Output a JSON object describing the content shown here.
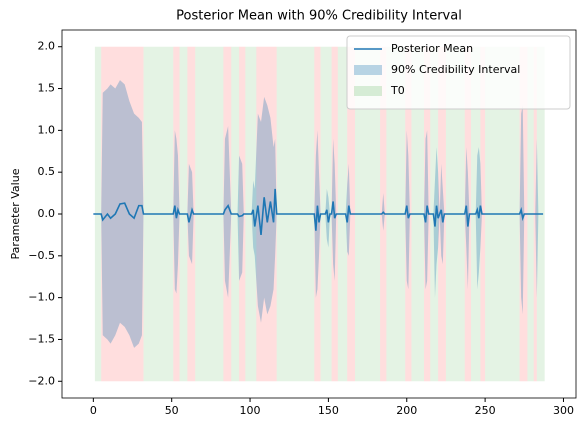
{
  "chart_data": {
    "type": "line",
    "title": "Posterior Mean with 90% Credibility Interval",
    "ylabel": "Parameter Value",
    "x": [
      0,
      5,
      6,
      9,
      11,
      14,
      17,
      20,
      23,
      26,
      29,
      31,
      32,
      51,
      52,
      53,
      54,
      55,
      60,
      61,
      63,
      64,
      83,
      84,
      86,
      88,
      92,
      93,
      95,
      96,
      101,
      102,
      103,
      105,
      107,
      109,
      111,
      113,
      115,
      116,
      117,
      141,
      142,
      143,
      144,
      145,
      148,
      149,
      150,
      151,
      152,
      153,
      154,
      155,
      161,
      162,
      163,
      164,
      184,
      185,
      186,
      199,
      200,
      201,
      202,
      211,
      212,
      213,
      214,
      217,
      218,
      219,
      220,
      221,
      222,
      223,
      224,
      237,
      238,
      239,
      240,
      244,
      245,
      246,
      247,
      248,
      272,
      273,
      274,
      275,
      282,
      283,
      284,
      287
    ],
    "series": [
      {
        "name": "Posterior Mean",
        "color": "#1f77b4",
        "values": [
          0,
          0,
          -0.07,
          0,
          -0.05,
          0,
          0.12,
          0.13,
          0,
          -0.05,
          0.1,
          0.1,
          0,
          0,
          0.1,
          -0.05,
          0.05,
          0,
          0,
          -0.1,
          0.05,
          0,
          0,
          0.05,
          0.1,
          0,
          0,
          -0.03,
          -0.02,
          0,
          0,
          0.05,
          -0.15,
          0.1,
          -0.25,
          0.2,
          -0.1,
          0.15,
          -0.1,
          0.3,
          0,
          0,
          -0.2,
          0.1,
          -0.1,
          0,
          0,
          0.05,
          -0.1,
          0,
          0,
          0.15,
          -0.05,
          0,
          0,
          -0.1,
          0.1,
          0,
          0,
          0.02,
          0,
          0,
          0.1,
          -0.05,
          0,
          0,
          -0.1,
          0.1,
          0,
          0,
          -0.15,
          0.1,
          -0.05,
          0,
          0.05,
          -0.1,
          0,
          0,
          0.1,
          -0.15,
          0,
          0,
          0.05,
          -0.05,
          0.1,
          0,
          0,
          0.05,
          -0.05,
          0,
          0,
          0,
          0,
          0
        ]
      }
    ],
    "band": {
      "name": "90% Credibility Interval",
      "color": "#1f77b4",
      "alpha": 0.3,
      "lower": [
        0,
        0,
        -1.45,
        -1.5,
        -1.55,
        -1.45,
        -1.3,
        -1.35,
        -1.45,
        -1.6,
        -1.55,
        -1.45,
        0,
        0,
        -0.9,
        -0.95,
        -0.6,
        0,
        0,
        -0.5,
        -0.6,
        0,
        0,
        -0.8,
        -1.0,
        0,
        0,
        -0.8,
        -0.7,
        0,
        0,
        -0.4,
        -0.5,
        -1.1,
        -1.3,
        -1.0,
        -1.2,
        -1.1,
        -0.9,
        -0.5,
        0,
        0,
        -1.0,
        -0.9,
        -0.5,
        0,
        0,
        -0.3,
        -0.4,
        0,
        0,
        -0.6,
        -0.8,
        0,
        0,
        -0.45,
        -0.5,
        0,
        0,
        -0.2,
        0,
        0,
        -0.8,
        -0.9,
        0,
        0,
        -0.9,
        -0.8,
        0,
        0,
        -1.0,
        -0.6,
        -0.4,
        0,
        -0.5,
        -0.6,
        0,
        0,
        -0.4,
        -0.9,
        0,
        0,
        -0.9,
        -0.7,
        -0.4,
        0,
        0,
        -1.0,
        -1.2,
        0,
        0,
        -1.0,
        0,
        0
      ],
      "upper": [
        0,
        0,
        1.45,
        1.5,
        1.55,
        1.5,
        1.6,
        1.55,
        1.35,
        1.2,
        1.15,
        1.1,
        0,
        0,
        1.0,
        0.9,
        0.7,
        0,
        0,
        0.6,
        0.5,
        0,
        0,
        0.9,
        1.05,
        0,
        0,
        0.7,
        0.6,
        0,
        0,
        0.4,
        0.3,
        1.2,
        1.1,
        1.4,
        1.3,
        1.15,
        0.8,
        0.9,
        0,
        0,
        0.7,
        1.0,
        0.5,
        0,
        0,
        0.3,
        0.2,
        0,
        0,
        0.9,
        0.6,
        0,
        0,
        0.35,
        0.6,
        0,
        0,
        0.25,
        0,
        0,
        1.0,
        0.7,
        0,
        0,
        0.9,
        1.0,
        0,
        0,
        0.4,
        0.8,
        0.5,
        0,
        0.6,
        0.3,
        0,
        0,
        0.8,
        0.5,
        0,
        0,
        0.7,
        0.8,
        0.6,
        0,
        0,
        1.2,
        1.3,
        0,
        0,
        0.9,
        0,
        0
      ]
    },
    "span_range": [
      -2,
      2
    ],
    "span_alpha": 0.13,
    "spans": [
      {
        "name": "T0",
        "color": "#2ca02c",
        "ranges": [
          [
            1,
            5
          ],
          [
            32,
            51
          ],
          [
            55,
            60
          ],
          [
            65,
            83
          ],
          [
            88,
            93
          ],
          [
            97,
            104
          ],
          [
            117,
            141
          ],
          [
            145,
            152
          ],
          [
            156,
            162
          ],
          [
            167,
            183
          ],
          [
            187,
            199
          ],
          [
            203,
            211
          ],
          [
            215,
            220
          ],
          [
            225,
            237
          ],
          [
            241,
            247
          ],
          [
            250,
            272
          ],
          [
            277,
            281
          ],
          [
            283,
            288
          ]
        ]
      },
      {
        "color": "#ff0000",
        "ranges": [
          [
            5,
            32
          ],
          [
            51,
            55
          ],
          [
            60,
            65
          ],
          [
            83,
            88
          ],
          [
            93,
            97
          ],
          [
            104,
            117
          ],
          [
            141,
            145
          ],
          [
            152,
            156
          ],
          [
            162,
            167
          ],
          [
            183,
            187
          ],
          [
            199,
            203
          ],
          [
            211,
            215
          ],
          [
            220,
            225
          ],
          [
            237,
            241
          ],
          [
            247,
            250
          ],
          [
            272,
            277
          ],
          [
            281,
            283
          ]
        ]
      }
    ],
    "xlim": [
      -20,
      308
    ],
    "ylim": [
      -2.2,
      2.2
    ],
    "xticks": [
      0,
      50,
      100,
      150,
      200,
      250,
      300
    ],
    "yticks": [
      {
        "value": -2,
        "label": "−2.0"
      },
      {
        "value": -1.5,
        "label": "−1.5"
      },
      {
        "value": -1,
        "label": "−1.0"
      },
      {
        "value": -0.5,
        "label": "−0.5"
      },
      {
        "value": 0,
        "label": "0.0"
      },
      {
        "value": 0.5,
        "label": "0.5"
      },
      {
        "value": 1,
        "label": "1.0"
      },
      {
        "value": 1.5,
        "label": "1.5"
      },
      {
        "value": 2,
        "label": "2.0"
      }
    ],
    "legend": "upper right"
  }
}
